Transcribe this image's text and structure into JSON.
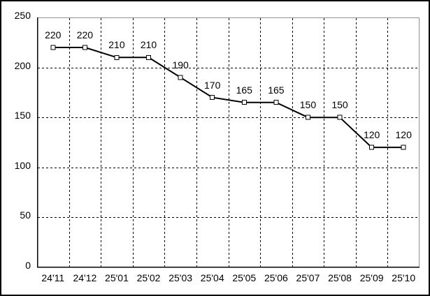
{
  "chart_data": {
    "type": "line",
    "title": "",
    "xlabel": "",
    "ylabel": "",
    "categories": [
      "24'11",
      "24'12",
      "25'01",
      "25'02",
      "25'03",
      "25'04",
      "25'05",
      "25'06",
      "25'07",
      "25'08",
      "25'09",
      "25'10"
    ],
    "values": [
      220,
      220,
      210,
      210,
      190,
      170,
      165,
      165,
      150,
      150,
      120,
      120
    ],
    "data_labels": [
      "220",
      "220",
      "210",
      "210",
      "190",
      "170",
      "165",
      "165",
      "150",
      "150",
      "120",
      "120"
    ],
    "ylim": [
      0,
      250
    ],
    "yticks": [
      0,
      50,
      100,
      150,
      200,
      250
    ],
    "ytick_labels": [
      "0",
      "50",
      "100",
      "150",
      "200",
      "250"
    ],
    "grid": true,
    "grid_style": "dashed",
    "legend": "none",
    "styles": {
      "background": "#ffffff",
      "outer_border_color": "#000000",
      "axis_color": "#000000",
      "frame_top_right_color": "#909090",
      "grid_color": "#000000",
      "line_color": "#000000",
      "marker": "open-square",
      "marker_fill": "#ffffff",
      "marker_stroke": "#000000",
      "text_color": "#000000"
    }
  }
}
